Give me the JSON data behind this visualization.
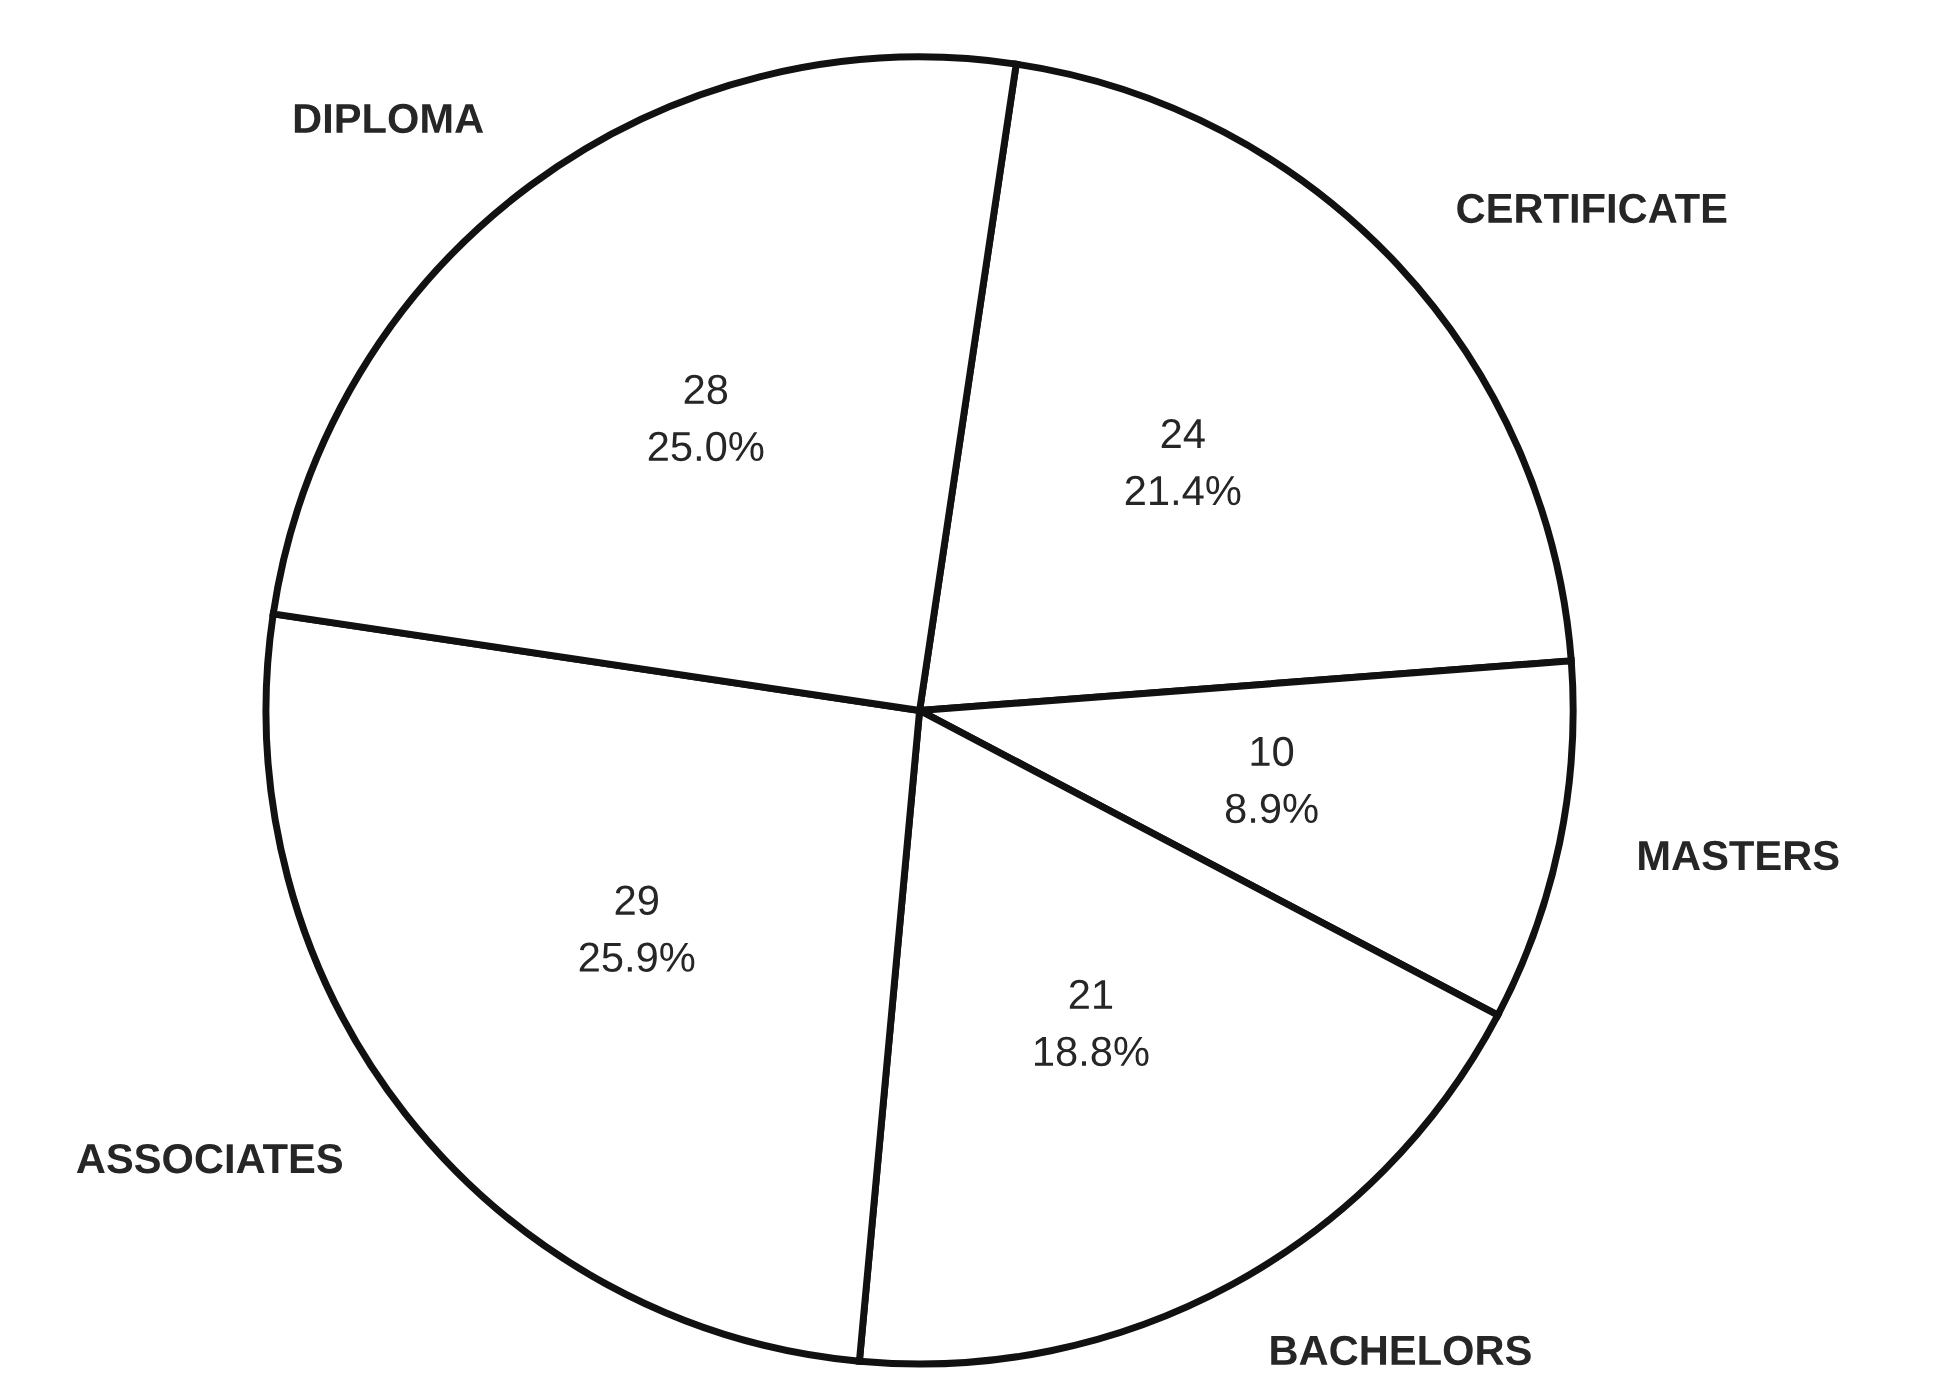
{
  "chart_data": {
    "type": "pie",
    "categories": [
      "CERTIFICATE",
      "MASTERS",
      "BACHELORS",
      "ASSOCIATES",
      "DIPLOMA"
    ],
    "values": [
      24,
      10,
      21,
      29,
      28
    ],
    "value_labels": [
      "24\n21.4%",
      "10\n8.9%",
      "21\n18.8%",
      "29\n25.9%",
      "28\n25.0%"
    ],
    "colors": [
      "#ffffff",
      "#ffffff",
      "#ffffff",
      "#ffffff",
      "#ffffff"
    ]
  }
}
